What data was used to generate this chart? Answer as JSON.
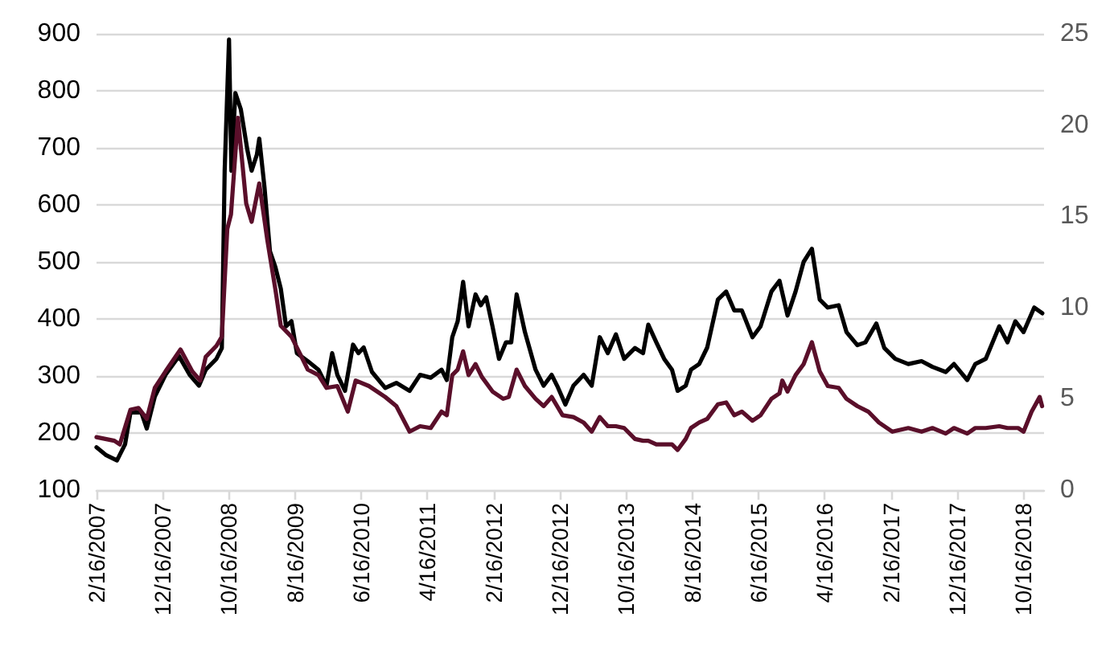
{
  "chart_data": {
    "type": "line",
    "grid": "y",
    "marker": "none",
    "line_style": "solid",
    "xlim": [
      "2007-02-16",
      "2019-01-19"
    ],
    "xticks": [
      {
        "value": "2007-02-16",
        "label": "2/16/2007"
      },
      {
        "value": "2007-12-16",
        "label": "12/16/2007"
      },
      {
        "value": "2008-10-16",
        "label": "10/16/2008"
      },
      {
        "value": "2009-08-16",
        "label": "8/16/2009"
      },
      {
        "value": "2010-06-16",
        "label": "6/16/2010"
      },
      {
        "value": "2011-04-16",
        "label": "4/16/2011"
      },
      {
        "value": "2012-02-16",
        "label": "2/16/2012"
      },
      {
        "value": "2012-12-16",
        "label": "12/16/2012"
      },
      {
        "value": "2013-10-16",
        "label": "10/16/2013"
      },
      {
        "value": "2014-08-16",
        "label": "8/16/2014"
      },
      {
        "value": "2015-06-16",
        "label": "6/16/2015"
      },
      {
        "value": "2016-04-16",
        "label": "4/16/2016"
      },
      {
        "value": "2017-02-16",
        "label": "2/16/2017"
      },
      {
        "value": "2017-12-16",
        "label": "12/16/2017"
      },
      {
        "value": "2018-10-16",
        "label": "10/16/2018"
      }
    ],
    "ylim": [
      100,
      900
    ],
    "yticks": [
      100,
      200,
      300,
      400,
      500,
      600,
      700,
      800,
      900
    ],
    "y2lim": [
      0,
      25
    ],
    "y2ticks": [
      0,
      5,
      10,
      15,
      20,
      25
    ],
    "series": [
      {
        "color": "#000000",
        "x": [
          "2007-02-16",
          "2007-04-02",
          "2007-05-21",
          "2007-06-27",
          "2007-07-22",
          "2007-09-10",
          "2007-10-05",
          "2007-11-11",
          "2007-12-30",
          "2008-03-01",
          "2008-04-19",
          "2008-06-01",
          "2008-07-02",
          "2008-08-20",
          "2008-09-14",
          "2008-09-27",
          "2008-10-17",
          "2008-10-28",
          "2008-11-15",
          "2008-12-10",
          "2009-01-09",
          "2009-01-29",
          "2009-02-22",
          "2009-03-05",
          "2009-03-29",
          "2009-04-23",
          "2009-05-18",
          "2009-06-12",
          "2009-07-06",
          "2009-07-31",
          "2009-08-25",
          "2009-10-14",
          "2009-12-02",
          "2010-01-08",
          "2010-02-03",
          "2010-02-27",
          "2010-04-03",
          "2010-05-10",
          "2010-06-04",
          "2010-06-28",
          "2010-08-05",
          "2010-10-05",
          "2010-11-25",
          "2011-01-25",
          "2011-03-14",
          "2011-05-02",
          "2011-06-21",
          "2011-07-15",
          "2011-08-09",
          "2011-09-03",
          "2011-09-28",
          "2011-10-23",
          "2011-11-24",
          "2011-12-18",
          "2012-01-12",
          "2012-02-10",
          "2012-03-11",
          "2012-04-12",
          "2012-05-06",
          "2012-05-31",
          "2012-07-08",
          "2012-08-26",
          "2012-10-02",
          "2012-11-08",
          "2012-12-03",
          "2013-01-10",
          "2013-02-16",
          "2013-04-04",
          "2013-05-11",
          "2013-06-17",
          "2013-07-24",
          "2013-08-30",
          "2013-10-07",
          "2013-11-26",
          "2014-01-02",
          "2014-01-26",
          "2014-03-04",
          "2014-04-09",
          "2014-05-15",
          "2014-06-10",
          "2014-07-17",
          "2014-08-10",
          "2014-09-17",
          "2014-10-24",
          "2014-12-12",
          "2015-01-19",
          "2015-02-25",
          "2015-04-01",
          "2015-05-20",
          "2015-06-26",
          "2015-08-15",
          "2015-09-21",
          "2015-10-28",
          "2015-12-04",
          "2016-01-10",
          "2016-02-17",
          "2016-03-24",
          "2016-04-30",
          "2016-06-19",
          "2016-07-25",
          "2016-09-13",
          "2016-10-20",
          "2016-12-09",
          "2017-01-15",
          "2017-03-06",
          "2017-05-05",
          "2017-07-05",
          "2017-08-24",
          "2017-10-24",
          "2017-12-01",
          "2018-01-31",
          "2018-03-09",
          "2018-04-26",
          "2018-06-27",
          "2018-08-04",
          "2018-09-09",
          "2018-10-17",
          "2018-12-05",
          "2019-01-11"
        ],
        "values": [
          175,
          161,
          152,
          180,
          236,
          236,
          208,
          264,
          302,
          335,
          302,
          283,
          311,
          330,
          349,
          660,
          890,
          660,
          796,
          768,
          697,
          660,
          688,
          716,
          631,
          519,
          491,
          453,
          387,
          396,
          340,
          326,
          311,
          283,
          340,
          302,
          274,
          355,
          340,
          350,
          307,
          279,
          288,
          274,
          302,
          297,
          311,
          293,
          368,
          396,
          465,
          387,
          443,
          424,
          438,
          387,
          330,
          359,
          359,
          443,
          377,
          311,
          283,
          302,
          283,
          250,
          283,
          302,
          283,
          368,
          340,
          373,
          330,
          349,
          340,
          390,
          359,
          330,
          311,
          274,
          283,
          311,
          321,
          350,
          434,
          448,
          415,
          415,
          368,
          387,
          448,
          467,
          406,
          448,
          500,
          523,
          434,
          420,
          424,
          377,
          354,
          359,
          392,
          349,
          330,
          321,
          326,
          316,
          307,
          321,
          293,
          321,
          330,
          387,
          359,
          396,
          377,
          420,
          410
        ]
      },
      {
        "color": "#5a0f2a",
        "axis": "y2",
        "x": [
          "2007-02-16",
          "2007-05-09",
          "2007-06-03",
          "2007-07-22",
          "2007-08-28",
          "2007-10-05",
          "2007-11-11",
          "2007-12-30",
          "2008-03-08",
          "2008-05-01",
          "2008-06-07",
          "2008-07-02",
          "2008-08-20",
          "2008-09-14",
          "2008-10-09",
          "2008-10-26",
          "2008-11-27",
          "2009-01-04",
          "2009-01-29",
          "2009-03-05",
          "2009-04-11",
          "2009-05-18",
          "2009-06-12",
          "2009-07-31",
          "2009-09-07",
          "2009-10-14",
          "2009-12-02",
          "2010-01-08",
          "2010-02-27",
          "2010-04-16",
          "2010-05-22",
          "2010-07-22",
          "2010-10-05",
          "2010-11-25",
          "2011-01-25",
          "2011-03-14",
          "2011-05-02",
          "2011-06-21",
          "2011-07-15",
          "2011-08-09",
          "2011-09-03",
          "2011-09-28",
          "2011-10-23",
          "2011-11-24",
          "2011-12-23",
          "2012-02-10",
          "2012-03-30",
          "2012-04-25",
          "2012-05-31",
          "2012-07-08",
          "2012-08-26",
          "2012-10-02",
          "2012-11-08",
          "2012-12-28",
          "2013-02-16",
          "2013-04-04",
          "2013-05-11",
          "2013-06-17",
          "2013-07-24",
          "2013-08-30",
          "2013-10-07",
          "2013-11-26",
          "2014-01-02",
          "2014-01-26",
          "2014-03-04",
          "2014-04-09",
          "2014-05-15",
          "2014-06-10",
          "2014-07-17",
          "2014-08-10",
          "2014-09-17",
          "2014-10-24",
          "2014-12-12",
          "2015-01-19",
          "2015-02-25",
          "2015-04-01",
          "2015-05-20",
          "2015-06-26",
          "2015-08-15",
          "2015-09-21",
          "2015-10-04",
          "2015-10-28",
          "2015-12-04",
          "2016-01-10",
          "2016-02-17",
          "2016-03-24",
          "2016-04-30",
          "2016-06-19",
          "2016-07-25",
          "2016-09-13",
          "2016-11-02",
          "2016-12-21",
          "2017-02-21",
          "2017-05-05",
          "2017-07-05",
          "2017-08-24",
          "2017-10-24",
          "2017-12-01",
          "2018-01-31",
          "2018-03-09",
          "2018-04-26",
          "2018-06-27",
          "2018-08-04",
          "2018-09-22",
          "2018-10-17",
          "2018-11-23",
          "2018-12-30",
          "2019-01-10"
        ],
        "values": [
          2.9,
          2.7,
          2.5,
          4.4,
          4.5,
          3.9,
          5.6,
          6.5,
          7.7,
          6.5,
          6.0,
          7.3,
          7.9,
          8.4,
          14.3,
          15.1,
          20.4,
          15.7,
          14.7,
          16.8,
          13.7,
          11.0,
          9.0,
          8.4,
          7.5,
          6.6,
          6.3,
          5.6,
          5.7,
          4.3,
          6.0,
          5.7,
          5.1,
          4.6,
          3.2,
          3.5,
          3.4,
          4.3,
          4.1,
          6.3,
          6.6,
          7.6,
          6.3,
          6.9,
          6.2,
          5.4,
          5.0,
          5.1,
          6.6,
          5.7,
          5.0,
          4.6,
          5.1,
          4.1,
          4.0,
          3.7,
          3.2,
          4.0,
          3.5,
          3.5,
          3.4,
          2.8,
          2.7,
          2.7,
          2.5,
          2.5,
          2.5,
          2.2,
          2.8,
          3.4,
          3.7,
          3.9,
          4.7,
          4.8,
          4.1,
          4.3,
          3.8,
          4.1,
          5.0,
          5.3,
          6.0,
          5.4,
          6.3,
          6.9,
          8.1,
          6.5,
          5.7,
          5.6,
          5.0,
          4.6,
          4.3,
          3.7,
          3.2,
          3.4,
          3.2,
          3.4,
          3.1,
          3.4,
          3.1,
          3.4,
          3.4,
          3.5,
          3.4,
          3.4,
          3.2,
          4.3,
          5.1,
          4.6
        ]
      }
    ]
  }
}
